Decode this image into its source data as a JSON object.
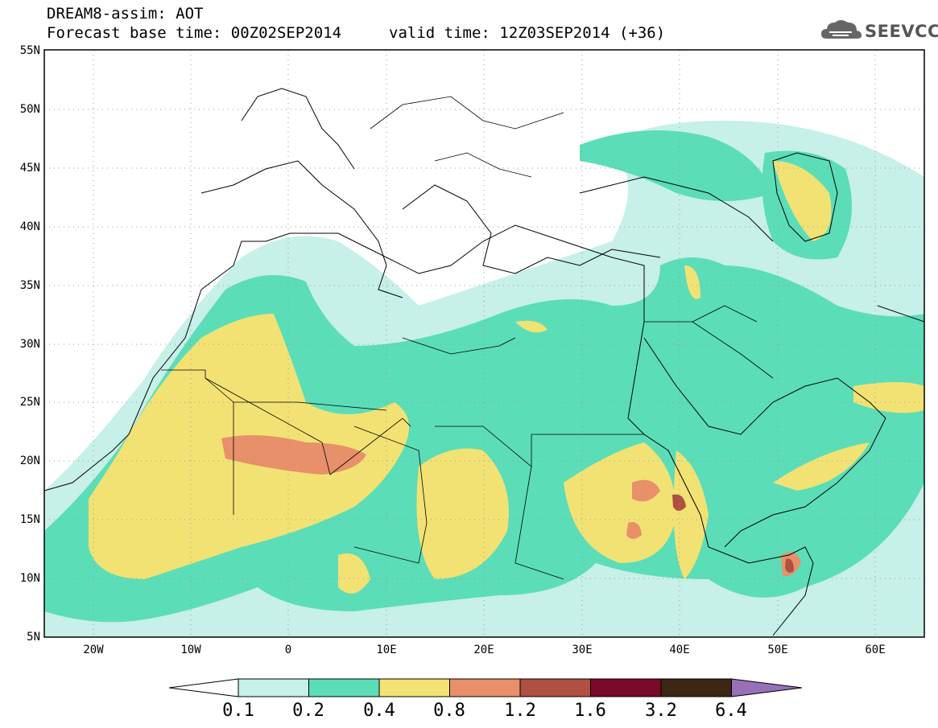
{
  "header": {
    "title": "DREAM8-assim: AOT",
    "forecast_base": "Forecast base time: 00Z02SEP2014",
    "valid_time": "valid time: 12Z03SEP2014 (+36)"
  },
  "logo": {
    "text": "SEEVCCC",
    "icon": "cloud-icon"
  },
  "map": {
    "lat_labels": [
      "55N",
      "50N",
      "45N",
      "40N",
      "35N",
      "30N",
      "25N",
      "20N",
      "15N",
      "10N",
      "5N"
    ],
    "lon_labels": [
      "20W",
      "10W",
      "0",
      "10E",
      "20E",
      "30E",
      "40E",
      "50E",
      "60E"
    ],
    "lon_range": [
      -25,
      65
    ],
    "lat_range": [
      5,
      55
    ]
  },
  "colorbar": {
    "labels": [
      "0.1",
      "0.2",
      "0.4",
      "0.8",
      "1.2",
      "1.6",
      "3.2",
      "6.4"
    ],
    "colors": [
      "#c6f0e8",
      "#5bddb8",
      "#f2e274",
      "#e8906a",
      "#b05040",
      "#7a0a2a",
      "#3c2614",
      "#9870b8"
    ]
  }
}
